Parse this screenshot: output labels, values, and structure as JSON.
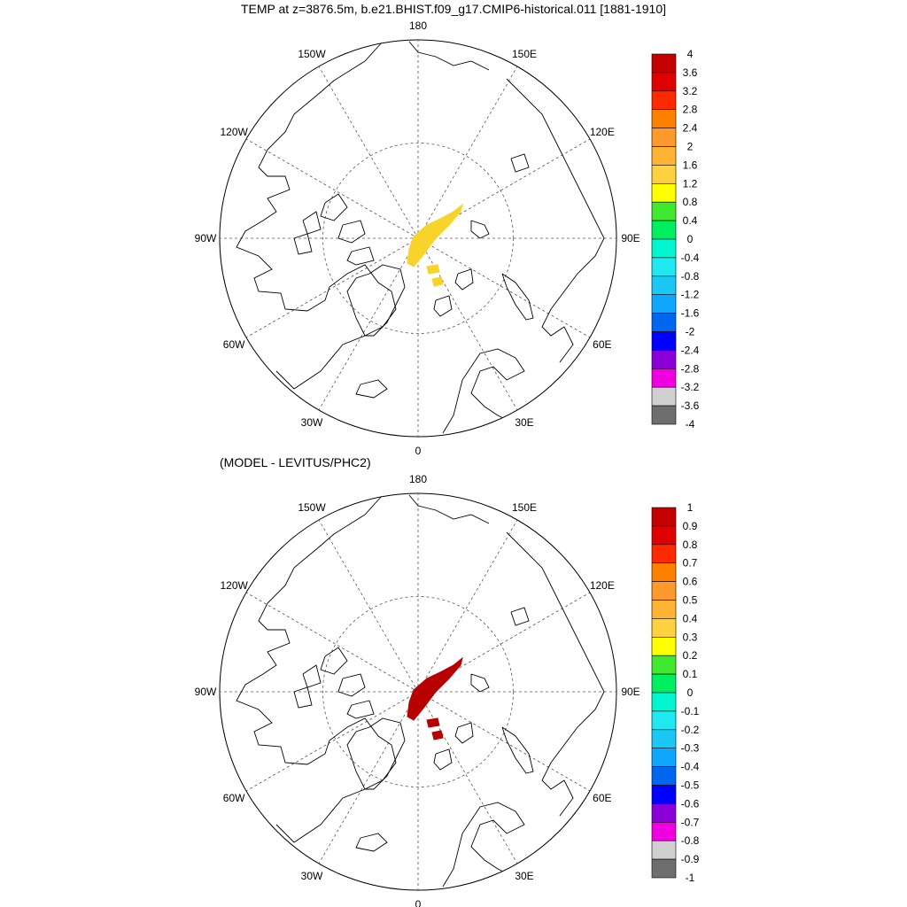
{
  "title": "TEMP at z=3876.5m, b.e21.BHIST.f09_g17.CMIP6-historical.011 [1881-1910]",
  "subtitle": "(MODEL - LEVITUS/PHC2)",
  "longitude_labels": [
    "180",
    "150E",
    "120E",
    "90E",
    "60E",
    "30E",
    "0",
    "30W",
    "60W",
    "90W",
    "120W",
    "150W"
  ],
  "panels": [
    {
      "id": "model",
      "fill_color": "#f8d42a",
      "colorbar": {
        "labels": [
          "4",
          "3.6",
          "3.2",
          "2.8",
          "2.4",
          "2",
          "1.6",
          "1.2",
          "0.8",
          "0.4",
          "0",
          "-0.4",
          "-0.8",
          "-1.2",
          "-1.6",
          "-2",
          "-2.4",
          "-2.8",
          "-3.2",
          "-3.6",
          "-4"
        ],
        "colors": [
          "#c40000",
          "#e00000",
          "#ff2a00",
          "#ff8000",
          "#ff9a2a",
          "#ffb233",
          "#ffd040",
          "#ffff00",
          "#40e830",
          "#00ee60",
          "#00f8d0",
          "#20e8f0",
          "#1ac8f8",
          "#10a8ff",
          "#0068f0",
          "#0000ff",
          "#8a00d8",
          "#f000e0",
          "#d0d0d0",
          "#6e6e6e"
        ]
      }
    },
    {
      "id": "difference",
      "fill_color": "#b80000",
      "colorbar": {
        "labels": [
          "1",
          "0.9",
          "0.8",
          "0.7",
          "0.6",
          "0.5",
          "0.4",
          "0.3",
          "0.2",
          "0.1",
          "0",
          "-0.1",
          "-0.2",
          "-0.3",
          "-0.4",
          "-0.5",
          "-0.6",
          "-0.7",
          "-0.8",
          "-0.9",
          "-1"
        ],
        "colors": [
          "#c40000",
          "#e00000",
          "#ff2a00",
          "#ff8000",
          "#ff9a2a",
          "#ffb233",
          "#ffd040",
          "#ffff00",
          "#40e830",
          "#00ee60",
          "#00f8d0",
          "#20e8f0",
          "#1ac8f8",
          "#10a8ff",
          "#0068f0",
          "#0000ff",
          "#8a00d8",
          "#f000e0",
          "#d0d0d0",
          "#6e6e6e"
        ]
      }
    }
  ]
}
